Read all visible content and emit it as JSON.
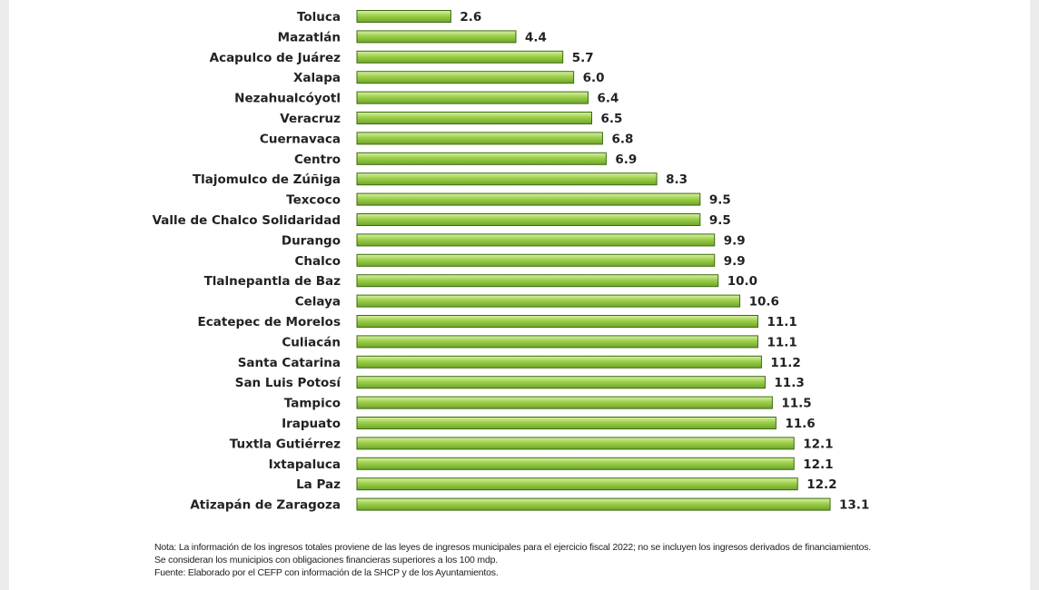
{
  "chart_data": {
    "type": "bar",
    "orientation": "horizontal",
    "categories": [
      "Toluca",
      "Mazatlán",
      "Acapulco de Juárez",
      "Xalapa",
      "Nezahualcóyotl",
      "Veracruz",
      "Cuernavaca",
      "Centro",
      "Tlajomulco de Zúñiga",
      "Texcoco",
      "Valle de Chalco Solidaridad",
      "Durango",
      "Chalco",
      "Tlalnepantla de Baz",
      "Celaya",
      "Ecatepec de Morelos",
      "Culiacán",
      "Santa Catarina",
      "San Luis Potosí",
      "Tampico",
      "Irapuato",
      "Tuxtla Gutiérrez",
      "Ixtapaluca",
      "La Paz",
      "Atizapán de Zaragoza"
    ],
    "values": [
      2.6,
      4.4,
      5.7,
      6.0,
      6.4,
      6.5,
      6.8,
      6.9,
      8.3,
      9.5,
      9.5,
      9.9,
      9.9,
      10.0,
      10.6,
      11.1,
      11.1,
      11.2,
      11.3,
      11.5,
      11.6,
      12.1,
      12.1,
      12.2,
      13.1
    ],
    "value_labels": [
      "2.6",
      "4.4",
      "5.7",
      "6.0",
      "6.4",
      "6.5",
      "6.8",
      "6.9",
      "8.3",
      "9.5",
      "9.5",
      "9.9",
      "9.9",
      "10.0",
      "10.6",
      "11.1",
      "11.1",
      "11.2",
      "11.3",
      "11.5",
      "11.6",
      "12.1",
      "12.1",
      "12.2",
      "13.1"
    ],
    "xlim": [
      0,
      13.1
    ],
    "grid": false,
    "bar_color": "#9ccf4a",
    "bar_edge_color": "#3d6a10"
  },
  "notes": {
    "line1": "Nota: La información de los ingresos totales proviene de las leyes de ingresos municipales para el ejercicio fiscal 2022; no se incluyen los ingresos derivados de financiamientos.",
    "line2": "Se consideran los municipios con obligaciones financieras superiores a los 100 mdp.",
    "line3": "Fuente: Elaborado por el CEFP con información de la SHCP y de los Ayuntamientos."
  }
}
